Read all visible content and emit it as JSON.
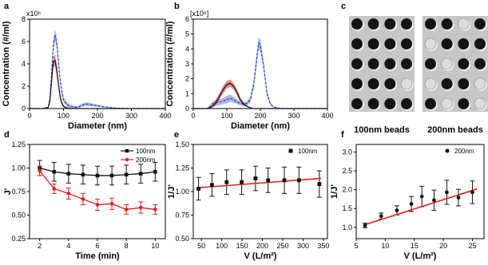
{
  "panel_letters": [
    "a",
    "b",
    "c",
    "d",
    "e",
    "f"
  ],
  "panel_c": {
    "captions": [
      "100nm beads",
      "200nm beads"
    ]
  },
  "chart_data": [
    {
      "panel": "a",
      "type": "line",
      "xlabel": "Diameter (nm)",
      "ylabel": "Concentration (#/ml)",
      "exponent_label": "x10⁶",
      "xlim": [
        0,
        400
      ],
      "ylim": [
        0,
        8
      ],
      "xticks": [
        0,
        100,
        200,
        300,
        400
      ],
      "yticks": [
        0,
        2,
        4,
        6,
        8
      ],
      "grid": false,
      "x": [
        0,
        40,
        55,
        60,
        65,
        70,
        75,
        80,
        85,
        90,
        95,
        100,
        110,
        120,
        140,
        160,
        170,
        180,
        190,
        200,
        220,
        250,
        300,
        400
      ],
      "series": [
        {
          "color": "#1f3fbf",
          "band_color": "#6a7be0",
          "style": "dashed",
          "values": [
            0,
            0,
            0.1,
            0.9,
            3.2,
            5.6,
            6.6,
            5.9,
            4.3,
            2.6,
            1.5,
            0.8,
            0.35,
            0.2,
            0.1,
            0.35,
            0.4,
            0.35,
            0.3,
            0.25,
            0.15,
            0.05,
            0,
            0
          ],
          "band": [
            0,
            0,
            0.05,
            0.3,
            0.4,
            0.5,
            0.5,
            0.5,
            0.45,
            0.35,
            0.3,
            0.25,
            0.2,
            0.15,
            0.1,
            0.15,
            0.15,
            0.15,
            0.1,
            0.1,
            0.05,
            0.05,
            0,
            0
          ]
        },
        {
          "color": "#111111",
          "band_color": "#d62020",
          "style": "solid",
          "values": [
            0,
            0,
            0.1,
            0.7,
            2.5,
            4.2,
            4.3,
            3.5,
            2.2,
            1.1,
            0.5,
            0.2,
            0.05,
            0.02,
            0,
            0,
            0,
            0,
            0,
            0,
            0,
            0,
            0,
            0
          ],
          "band": [
            0,
            0,
            0.05,
            0.3,
            0.4,
            0.5,
            0.5,
            0.5,
            0.4,
            0.3,
            0.2,
            0.1,
            0.05,
            0.02,
            0,
            0,
            0,
            0,
            0,
            0,
            0,
            0,
            0,
            0
          ]
        }
      ]
    },
    {
      "panel": "b",
      "type": "line",
      "xlabel": "Diameter (nm)",
      "ylabel": "Concentration (#/ml)",
      "exponent_label": "[x10⁶]",
      "xlim": [
        0,
        400
      ],
      "ylim": [
        0,
        6
      ],
      "xticks": [
        0,
        100,
        200,
        300,
        400
      ],
      "yticks": [
        0,
        1,
        2,
        3,
        4,
        5,
        6
      ],
      "grid": false,
      "x": [
        0,
        40,
        50,
        60,
        70,
        80,
        90,
        100,
        110,
        120,
        130,
        140,
        150,
        160,
        170,
        180,
        190,
        195,
        200,
        210,
        220,
        230,
        240,
        260,
        300,
        400
      ],
      "series": [
        {
          "color": "#1f3fbf",
          "band_color": "#6a7be0",
          "style": "dashed",
          "values": [
            0,
            0,
            0.15,
            0.35,
            0.4,
            0.45,
            0.5,
            0.6,
            0.7,
            0.6,
            0.45,
            0.35,
            0.3,
            0.35,
            0.6,
            1.6,
            3.5,
            4.4,
            4.2,
            2.8,
            1.0,
            0.3,
            0.1,
            0,
            0,
            0
          ],
          "band": [
            0,
            0,
            0.1,
            0.2,
            0.2,
            0.2,
            0.2,
            0.25,
            0.25,
            0.2,
            0.15,
            0.15,
            0.15,
            0.15,
            0.2,
            0.3,
            0.4,
            0.4,
            0.4,
            0.3,
            0.2,
            0.1,
            0.05,
            0,
            0,
            0
          ]
        },
        {
          "color": "#111111",
          "band_color": "#d62020",
          "style": "solid",
          "values": [
            0,
            0,
            0.05,
            0.2,
            0.5,
            0.9,
            1.3,
            1.6,
            1.7,
            1.5,
            1.1,
            0.6,
            0.3,
            0.15,
            0.05,
            0,
            0,
            0,
            0,
            0,
            0,
            0,
            0,
            0,
            0,
            0
          ],
          "band": [
            0,
            0,
            0.05,
            0.1,
            0.2,
            0.2,
            0.25,
            0.25,
            0.25,
            0.2,
            0.2,
            0.15,
            0.1,
            0.05,
            0.02,
            0,
            0,
            0,
            0,
            0,
            0,
            0,
            0,
            0,
            0,
            0
          ]
        }
      ]
    },
    {
      "panel": "d",
      "type": "line",
      "xlabel": "Time (min)",
      "ylabel": "J'",
      "xlim": [
        1.3,
        10.7
      ],
      "ylim": [
        0.25,
        1.25
      ],
      "xticks": [
        2,
        4,
        6,
        8,
        10
      ],
      "yticks": [
        0.25,
        0.5,
        0.75,
        1.0,
        1.25
      ],
      "ytick_labels": [
        "0.25",
        "0.50",
        "0.75",
        "1.00",
        "1.25"
      ],
      "grid": false,
      "legend_position": "top-right",
      "x": [
        2,
        3,
        4,
        5,
        6,
        7,
        8,
        9,
        10
      ],
      "series": [
        {
          "name": "100nm",
          "color": "#111111",
          "marker": "square",
          "values": [
            1.0,
            0.96,
            0.94,
            0.93,
            0.92,
            0.92,
            0.93,
            0.94,
            0.96
          ],
          "error": [
            0.08,
            0.1,
            0.1,
            0.1,
            0.1,
            0.1,
            0.1,
            0.1,
            0.1
          ]
        },
        {
          "name": "200nm",
          "color": "#e02020",
          "marker": "circle",
          "values": [
            0.97,
            0.78,
            0.73,
            0.67,
            0.61,
            0.62,
            0.56,
            0.58,
            0.56
          ],
          "error": [
            0.05,
            0.05,
            0.06,
            0.06,
            0.06,
            0.06,
            0.05,
            0.06,
            0.05
          ]
        }
      ]
    },
    {
      "panel": "e",
      "type": "scatter",
      "xlabel": "V (L/m²)",
      "ylabel": "1/J'",
      "xlim": [
        30,
        360
      ],
      "ylim": [
        0.5,
        1.5
      ],
      "xticks": [
        50,
        100,
        150,
        200,
        250,
        300,
        350
      ],
      "yticks": [
        0.5,
        0.75,
        1.0,
        1.25,
        1.5
      ],
      "ytick_labels": [
        "0.50",
        "0.75",
        "1.00",
        "1.25",
        "1.50"
      ],
      "grid": false,
      "legend_position": "top-right",
      "fit_color": "#e02020",
      "fit_line": [
        [
          40,
          1.04
        ],
        [
          345,
          1.14
        ]
      ],
      "series": [
        {
          "name": "100nm",
          "color": "#111111",
          "marker": "square",
          "x": [
            43,
            76,
            112,
            149,
            183,
            214,
            254,
            290,
            340
          ],
          "values": [
            1.03,
            1.07,
            1.1,
            1.1,
            1.14,
            1.12,
            1.12,
            1.12,
            1.08
          ],
          "error": [
            0.12,
            0.12,
            0.13,
            0.13,
            0.13,
            0.13,
            0.14,
            0.14,
            0.14
          ]
        }
      ]
    },
    {
      "panel": "f",
      "type": "scatter",
      "xlabel": "V (L/m²)",
      "ylabel": "1/J'",
      "xlim": [
        5,
        27
      ],
      "ylim": [
        0.7,
        3.2
      ],
      "xticks": [
        5,
        10,
        15,
        20,
        25
      ],
      "yticks": [
        1.0,
        1.5,
        2.0,
        2.5,
        3.0
      ],
      "ytick_labels": [
        "1.0",
        "1.5",
        "2.0",
        "2.5",
        "3.0"
      ],
      "grid": false,
      "legend_position": "top-right",
      "fit_color": "#e02020",
      "fit_line": [
        [
          6.3,
          1.06
        ],
        [
          25.8,
          2.02
        ]
      ],
      "series": [
        {
          "name": "200nm",
          "color": "#111111",
          "marker": "circle",
          "x": [
            6.5,
            9.3,
            12.0,
            14.5,
            16.3,
            18.4,
            20.6,
            22.6,
            25.0
          ],
          "values": [
            1.05,
            1.3,
            1.45,
            1.62,
            1.82,
            1.72,
            1.93,
            1.79,
            1.93
          ],
          "error": [
            0.06,
            0.08,
            0.12,
            0.2,
            0.27,
            0.27,
            0.32,
            0.22,
            0.3
          ]
        }
      ]
    }
  ]
}
